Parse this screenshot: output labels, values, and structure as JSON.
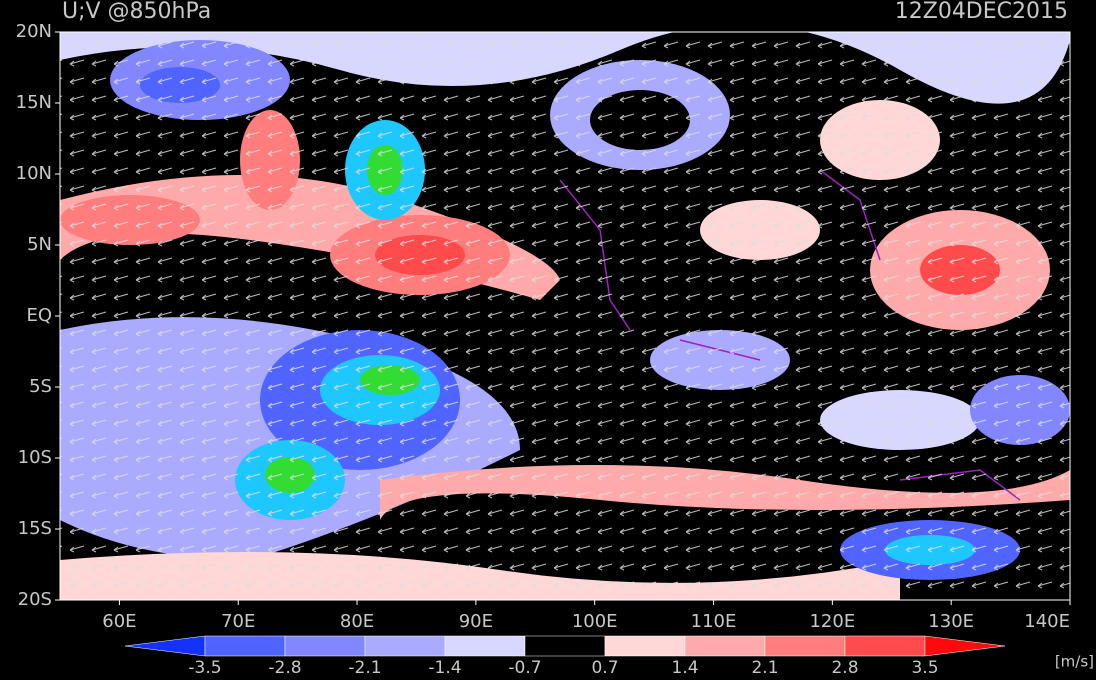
{
  "map": {
    "title": "U;V @850hPa",
    "time": "12Z04DEC2015",
    "lonlim": [
      55,
      140
    ],
    "latlim": [
      -20,
      20
    ],
    "lat_ticks": [
      {
        "value": 20,
        "label": "20N"
      },
      {
        "value": 15,
        "label": "15N"
      },
      {
        "value": 10,
        "label": "10N"
      },
      {
        "value": 5,
        "label": "5N"
      },
      {
        "value": 0,
        "label": "EQ"
      },
      {
        "value": -5,
        "label": "5S"
      },
      {
        "value": -10,
        "label": "10S"
      },
      {
        "value": -15,
        "label": "15S"
      },
      {
        "value": -20,
        "label": "20S"
      }
    ],
    "lon_ticks": [
      {
        "value": 60,
        "label": "60E"
      },
      {
        "value": 70,
        "label": "70E"
      },
      {
        "value": 80,
        "label": "80E"
      },
      {
        "value": 90,
        "label": "90E"
      },
      {
        "value": 100,
        "label": "100E"
      },
      {
        "value": 110,
        "label": "110E"
      },
      {
        "value": 120,
        "label": "120E"
      },
      {
        "value": 130,
        "label": "130E"
      },
      {
        "value": 140,
        "label": "140E"
      }
    ],
    "colorbar": {
      "levels": [
        -3.5,
        -2.8,
        -2.1,
        -1.4,
        -0.7,
        0.7,
        1.4,
        2.1,
        2.8,
        3.5
      ],
      "colors": [
        "#1432ff",
        "#5064ff",
        "#8287ff",
        "#aaaaff",
        "#d7d7ff",
        "#000000",
        "#ffd7d7",
        "#ffaaaa",
        "#ff7d7d",
        "#ff4b4b",
        "#ff0a0a"
      ],
      "unit": "[m/s]"
    }
  }
}
